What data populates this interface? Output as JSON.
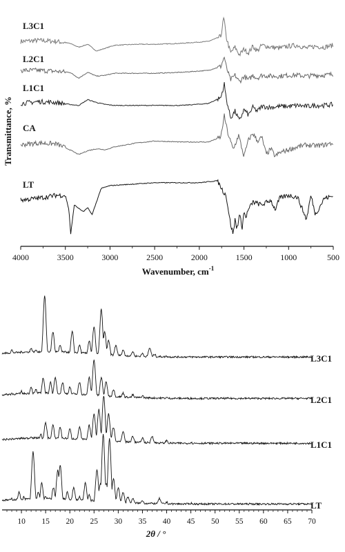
{
  "chart_data": [
    {
      "type": "line",
      "title": "",
      "xlabel": "Wavenumber, cm",
      "xlabel_sup": "-1",
      "ylabel": "Transmittance, %",
      "xlim": [
        4000,
        500
      ],
      "x_reversed": true,
      "xticks": [
        4000,
        3500,
        3000,
        2500,
        2000,
        1500,
        1000,
        500
      ],
      "y_ticks_shown": false,
      "grid": false,
      "series": [
        {
          "name": "L3C1",
          "x": [
            4000,
            3800,
            3600,
            3450,
            3350,
            3250,
            3150,
            3050,
            2950,
            2700,
            2500,
            2200,
            1900,
            1760,
            1725,
            1700,
            1650,
            1600,
            1550,
            1500,
            1450,
            1400,
            1350,
            1300,
            1200,
            1100,
            1000,
            900,
            800,
            700,
            600,
            500
          ],
          "y": [
            0.0,
            0.01,
            0.0,
            -0.02,
            -0.06,
            -0.03,
            -0.1,
            -0.07,
            -0.04,
            -0.03,
            -0.03,
            -0.02,
            0.0,
            0.05,
            0.25,
            0.05,
            -0.12,
            -0.06,
            -0.14,
            -0.08,
            -0.12,
            -0.05,
            -0.1,
            -0.04,
            -0.06,
            -0.07,
            -0.05,
            -0.04,
            -0.07,
            -0.05,
            -0.06,
            -0.04
          ]
        },
        {
          "name": "L2C1",
          "x": [
            4000,
            3800,
            3600,
            3450,
            3350,
            3250,
            3150,
            3050,
            2950,
            2700,
            2500,
            2200,
            1900,
            1760,
            1720,
            1700,
            1650,
            1600,
            1550,
            1500,
            1450,
            1400,
            1350,
            1300,
            1200,
            1100,
            1000,
            900,
            800,
            700,
            600,
            500
          ],
          "y": [
            0.0,
            0.0,
            -0.01,
            -0.02,
            -0.08,
            -0.02,
            -0.06,
            -0.05,
            -0.03,
            -0.03,
            -0.03,
            -0.02,
            0.0,
            0.04,
            0.14,
            0.04,
            -0.1,
            -0.05,
            -0.12,
            -0.06,
            -0.1,
            -0.05,
            -0.08,
            -0.05,
            -0.06,
            -0.06,
            -0.05,
            -0.05,
            -0.06,
            -0.05,
            -0.05,
            -0.04
          ]
        },
        {
          "name": "L1C1",
          "x": [
            4000,
            3800,
            3600,
            3450,
            3350,
            3250,
            3150,
            3050,
            2950,
            2700,
            2500,
            2200,
            1900,
            1760,
            1720,
            1700,
            1650,
            1600,
            1550,
            1500,
            1450,
            1400,
            1350,
            1300,
            1200,
            1100,
            1000,
            900,
            800,
            700,
            600,
            500
          ],
          "y": [
            0.0,
            0.02,
            0.01,
            -0.01,
            -0.02,
            0.04,
            0.01,
            -0.01,
            -0.02,
            -0.02,
            -0.02,
            -0.02,
            0.0,
            0.06,
            0.2,
            0.06,
            -0.15,
            -0.08,
            -0.18,
            -0.06,
            -0.12,
            -0.04,
            -0.08,
            -0.03,
            -0.04,
            -0.03,
            -0.03,
            -0.02,
            -0.03,
            -0.02,
            -0.02,
            -0.01
          ]
        },
        {
          "name": "CA",
          "x": [
            4000,
            3800,
            3600,
            3450,
            3350,
            3250,
            3150,
            3050,
            2950,
            2700,
            2500,
            2200,
            1900,
            1760,
            1720,
            1680,
            1620,
            1560,
            1500,
            1450,
            1400,
            1350,
            1300,
            1250,
            1200,
            1150,
            1100,
            1000,
            900,
            800,
            700,
            600,
            500
          ],
          "y": [
            0.0,
            0.02,
            0.01,
            -0.05,
            -0.1,
            -0.06,
            -0.04,
            -0.05,
            -0.02,
            0.02,
            0.04,
            0.03,
            0.03,
            0.08,
            0.3,
            0.12,
            -0.05,
            0.1,
            -0.12,
            0.05,
            0.12,
            0.04,
            0.08,
            -0.1,
            -0.04,
            -0.12,
            -0.08,
            -0.05,
            -0.02,
            0.0,
            -0.01,
            0.0,
            0.02
          ]
        },
        {
          "name": "LT",
          "x": [
            4000,
            3800,
            3600,
            3500,
            3460,
            3440,
            3400,
            3300,
            3250,
            3200,
            3100,
            3000,
            2500,
            2000,
            1800,
            1760,
            1740,
            1700,
            1650,
            1620,
            1600,
            1580,
            1550,
            1520,
            1500,
            1480,
            1450,
            1400,
            1300,
            1200,
            1150,
            1100,
            1000,
            900,
            800,
            750,
            700,
            600,
            500
          ],
          "y": [
            0.0,
            0.02,
            0.05,
            0.05,
            -0.1,
            -0.35,
            -0.05,
            -0.12,
            -0.08,
            -0.15,
            0.12,
            0.15,
            0.18,
            0.18,
            0.2,
            0.14,
            0.1,
            0.05,
            -0.25,
            -0.35,
            -0.2,
            -0.3,
            -0.15,
            -0.28,
            -0.12,
            -0.18,
            -0.1,
            -0.02,
            -0.05,
            0.0,
            -0.1,
            0.02,
            0.05,
            0.03,
            -0.2,
            0.05,
            -0.15,
            0.02,
            0.04
          ]
        }
      ]
    },
    {
      "type": "line",
      "title": "",
      "xlabel": "2θ / °",
      "ylabel": "",
      "xlim": [
        6,
        70
      ],
      "xticks": [
        10,
        15,
        20,
        25,
        30,
        35,
        40,
        45,
        50,
        55,
        60,
        65,
        70
      ],
      "y_ticks_shown": false,
      "grid": false,
      "series": [
        {
          "name": "L3C1",
          "x": [
            6,
            8,
            10,
            12,
            13,
            14.8,
            16.5,
            18,
            20.5,
            22,
            24,
            25,
            26.5,
            27.2,
            28,
            29.5,
            31,
            33,
            35,
            36.5,
            37.5,
            40,
            45,
            50,
            55,
            60,
            65,
            70
          ],
          "y": [
            0.05,
            0.1,
            0.08,
            0.12,
            0.1,
            0.7,
            0.3,
            0.15,
            0.3,
            0.15,
            0.2,
            0.35,
            0.55,
            0.3,
            0.2,
            0.15,
            0.1,
            0.08,
            0.06,
            0.12,
            0.05,
            0.03,
            0.02,
            0.01,
            0.01,
            0.0,
            0.0,
            0.0
          ]
        },
        {
          "name": "L2C1",
          "x": [
            6,
            8,
            10,
            12,
            13,
            14.5,
            16,
            17,
            18.5,
            20,
            22,
            24,
            25,
            26.5,
            27.5,
            29,
            31,
            33,
            35,
            40,
            45,
            50,
            55,
            60,
            65,
            70
          ],
          "y": [
            0.05,
            0.08,
            0.1,
            0.15,
            0.12,
            0.25,
            0.2,
            0.25,
            0.2,
            0.15,
            0.2,
            0.25,
            0.45,
            0.25,
            0.2,
            0.12,
            0.08,
            0.06,
            0.05,
            0.03,
            0.02,
            0.01,
            0.01,
            0.0,
            0.0,
            0.0
          ]
        },
        {
          "name": "L1C1",
          "x": [
            6,
            8,
            10,
            12,
            14,
            15,
            16.5,
            18,
            20,
            22,
            24,
            25,
            26,
            27,
            28,
            29,
            31,
            33,
            35,
            37,
            40,
            45,
            50,
            55,
            60,
            65,
            70
          ],
          "y": [
            0.05,
            0.06,
            0.08,
            0.1,
            0.12,
            0.25,
            0.22,
            0.2,
            0.18,
            0.2,
            0.22,
            0.35,
            0.4,
            0.55,
            0.35,
            0.2,
            0.15,
            0.1,
            0.08,
            0.1,
            0.05,
            0.03,
            0.02,
            0.01,
            0.01,
            0.0,
            0.0
          ]
        },
        {
          "name": "LT",
          "x": [
            6,
            8,
            9.5,
            10.5,
            12.4,
            13.5,
            14.2,
            15,
            16.6,
            17.5,
            18,
            19.5,
            20.8,
            22,
            23.2,
            24,
            25.6,
            26.3,
            26.9,
            27.5,
            28.2,
            29,
            30,
            31,
            32,
            33,
            35,
            38.5,
            40,
            45,
            50,
            55,
            60,
            65,
            70
          ],
          "y": [
            0.05,
            0.08,
            0.15,
            0.1,
            0.6,
            0.15,
            0.25,
            0.1,
            0.2,
            0.4,
            0.45,
            0.15,
            0.2,
            0.1,
            0.25,
            0.12,
            0.4,
            0.25,
            0.8,
            0.25,
            0.75,
            0.3,
            0.2,
            0.15,
            0.1,
            0.08,
            0.06,
            0.08,
            0.04,
            0.03,
            0.02,
            0.01,
            0.01,
            0.0,
            0.0
          ]
        }
      ]
    }
  ]
}
